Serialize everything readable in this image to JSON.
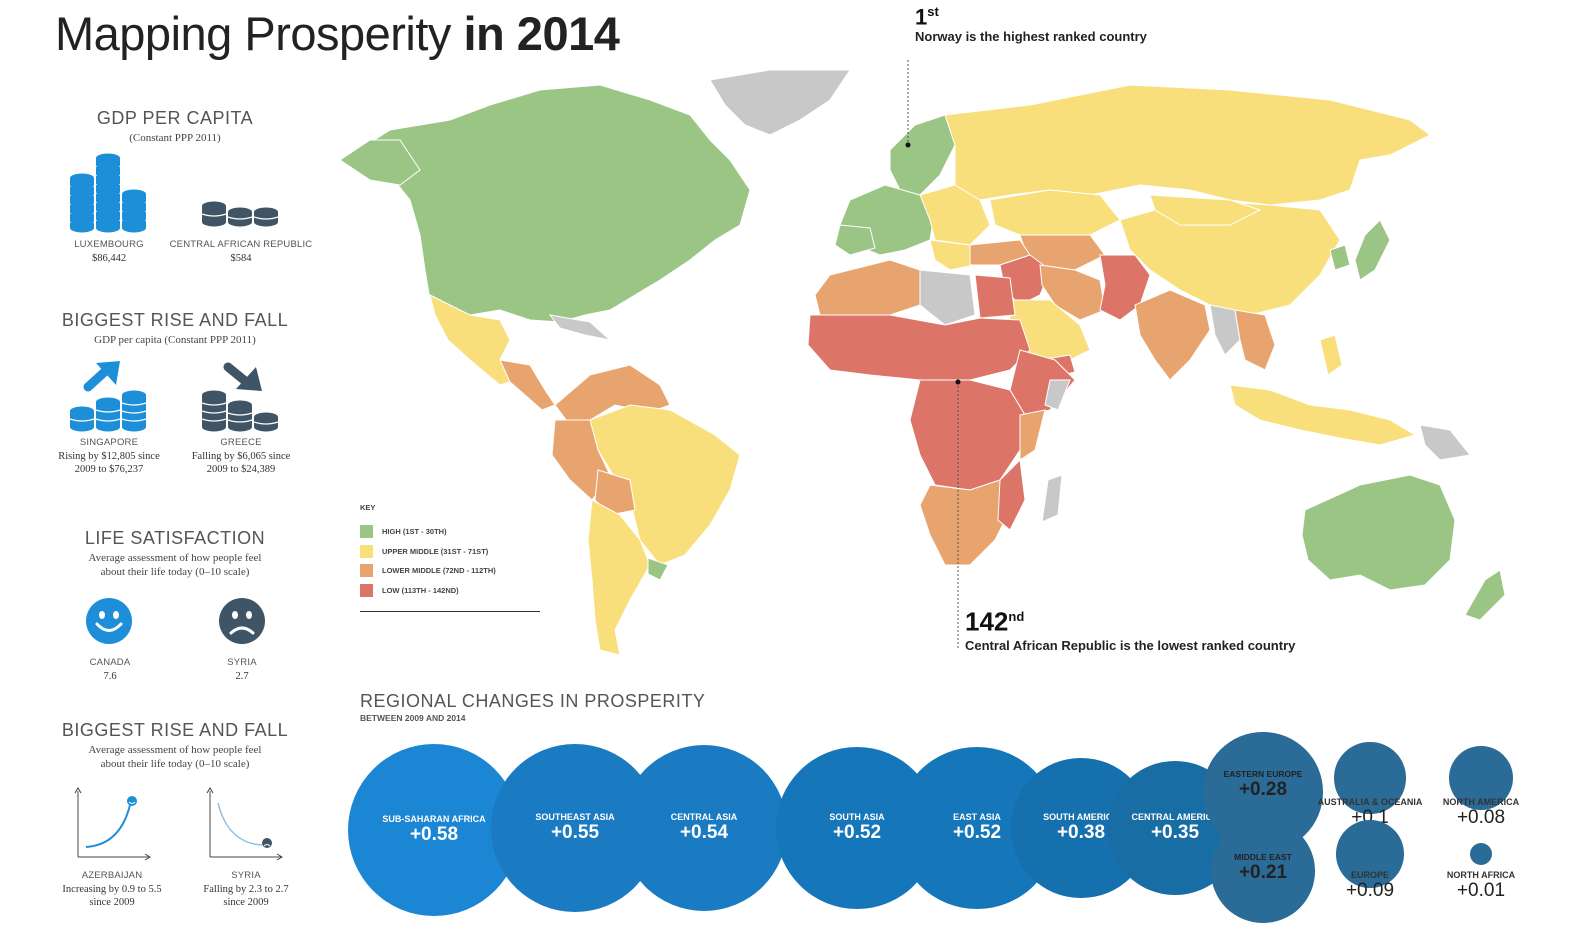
{
  "title": {
    "light": "Mapping Prosperity",
    "bold": "in 2014"
  },
  "gdp": {
    "heading": "GDP PER CAPITA",
    "sub": "(Constant PPP 2011)",
    "left": {
      "name": "LUXEMBOURG",
      "value": "$86,442"
    },
    "right": {
      "name": "CENTRAL AFRICAN REPUBLIC",
      "value": "$584"
    }
  },
  "rise_fall_gdp": {
    "heading": "BIGGEST RISE AND FALL",
    "sub": "GDP per capita (Constant PPP 2011)",
    "left": {
      "name": "SINGAPORE",
      "line1": "Rising by $12,805 since",
      "line2": "2009 to $76,237"
    },
    "right": {
      "name": "GREECE",
      "line1": "Falling by $6,065 since",
      "line2": "2009 to $24,389"
    }
  },
  "life": {
    "heading": "LIFE SATISFACTION",
    "sub1": "Average assessment of how people feel",
    "sub2": "about their life today (0–10 scale)",
    "left": {
      "name": "CANADA",
      "value": "7.6"
    },
    "right": {
      "name": "SYRIA",
      "value": "2.7"
    }
  },
  "rise_fall_life": {
    "heading": "BIGGEST RISE AND FALL",
    "sub1": "Average assessment of how people feel",
    "sub2": "about their life today (0–10 scale)",
    "left": {
      "name": "AZERBAIJAN",
      "line1": "Increasing by 0.9 to 5.5",
      "line2": "since 2009"
    },
    "right": {
      "name": "SYRIA",
      "line1": "Falling by 2.3 to 2.7",
      "line2": "since 2009"
    }
  },
  "callouts": {
    "top": {
      "rank": "1",
      "suffix": "st",
      "text": "Norway is the highest ranked country"
    },
    "bottom": {
      "rank": "142",
      "suffix": "nd",
      "text": "Central African Republic is the lowest ranked country"
    }
  },
  "key": {
    "title": "KEY",
    "items": [
      {
        "label": "HIGH (1ST - 30TH)",
        "color": "#9bc584"
      },
      {
        "label": "UPPER MIDDLE (31ST - 71ST)",
        "color": "#f9df7b"
      },
      {
        "label": "LOWER MIDDLE (72ND - 112TH)",
        "color": "#e7a46e"
      },
      {
        "label": "LOW (113TH - 142ND)",
        "color": "#dc7468"
      }
    ]
  },
  "colors": {
    "high": "#9bc584",
    "upper": "#f9df7b",
    "lower": "#e7a46e",
    "low": "#dc7468",
    "none": "#c8c8c8",
    "blue": "#2a8fd6",
    "dark": "#3f5565"
  },
  "regional": {
    "title": "REGIONAL CHANGES IN PROSPERITY",
    "sub": "BETWEEN 2009 AND 2014",
    "bubbles": [
      {
        "name": "SUB-SAHARAN AFRICA",
        "value": "+0.58",
        "num": 0.58
      },
      {
        "name": "SOUTHEAST ASIA",
        "value": "+0.55",
        "num": 0.55
      },
      {
        "name": "CENTRAL ASIA",
        "value": "+0.54",
        "num": 0.54
      },
      {
        "name": "SOUTH ASIA",
        "value": "+0.52",
        "num": 0.52
      },
      {
        "name": "EAST ASIA",
        "value": "+0.52",
        "num": 0.52
      },
      {
        "name": "SOUTH AMERICA",
        "value": "+0.38",
        "num": 0.38
      },
      {
        "name": "CENTRAL AMERICA",
        "value": "+0.35",
        "num": 0.35
      },
      {
        "name": "EASTERN EUROPE",
        "value": "+0.28",
        "num": 0.28
      },
      {
        "name": "MIDDLE EAST",
        "value": "+0.21",
        "num": 0.21
      },
      {
        "name": "AUSTRALIA & OCEANIA",
        "value": "+0.1",
        "num": 0.1
      },
      {
        "name": "NORTH AMERICA",
        "value": "+0.08",
        "num": 0.08
      },
      {
        "name": "EUROPE",
        "value": "+0.09",
        "num": 0.09
      },
      {
        "name": "NORTH AFRICA",
        "value": "+0.01",
        "num": 0.01
      }
    ]
  }
}
